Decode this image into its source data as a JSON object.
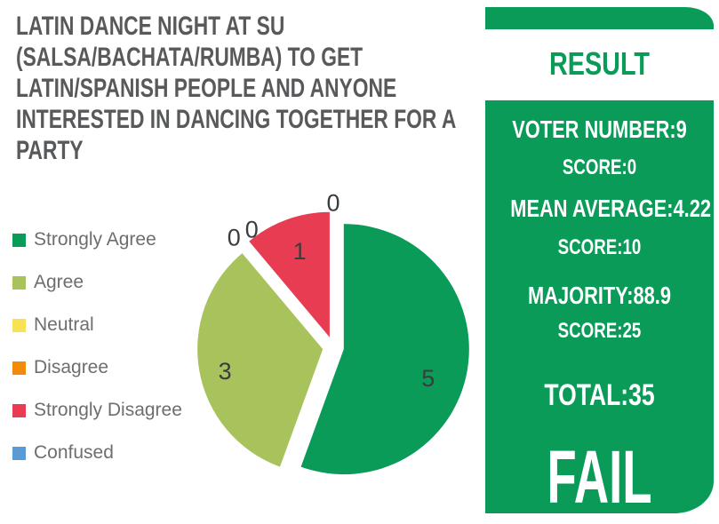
{
  "header": {
    "title_lines": [
      "LATIN DANCE NIGHT AT SU",
      "(SALSA/BACHATA/RUMBA) TO GET",
      "LATIN/SPANISH PEOPLE AND ANYONE",
      "INTERESTED IN DANCING TOGETHER FOR A",
      "PARTY"
    ]
  },
  "chart_data": {
    "type": "pie",
    "title": "LATIN DANCE NIGHT AT SU (SALSA/BACHATA/RUMBA) TO GET LATIN/SPANISH PEOPLE AND ANYONE INTERESTED IN DANCING TOGETHER FOR A PARTY",
    "categories": [
      "Strongly Agree",
      "Agree",
      "Neutral",
      "Disagree",
      "Strongly Disagree",
      "Confused"
    ],
    "values": [
      5,
      3,
      0,
      0,
      1,
      0
    ],
    "colors": [
      "#0a9b58",
      "#a8c35c",
      "#f8e152",
      "#f28b0c",
      "#e73c52",
      "#5b9bd5"
    ],
    "total_votes": 9,
    "start_angle_deg": 0,
    "direction": "clockwise",
    "exploded": true,
    "data_labels": "values",
    "legend_position": "left"
  },
  "result_panel": {
    "header": "RESULT",
    "voter_number": "VOTER NUMBER:9",
    "voter_score": "SCORE:0",
    "mean_average": "MEAN AVERAGE:4.22",
    "mean_score": "SCORE:10",
    "majority": "MAJORITY:88.9",
    "majority_score": "SCORE:25",
    "total": "TOTAL:35",
    "verdict": "FAIL"
  },
  "colors": {
    "brand_green": "#0a9b58",
    "title_gray": "#58595b",
    "legend_text_gray": "#6d6e71",
    "pie_label_gray": "#3b3c3e",
    "panel_text": "#ffffff"
  }
}
